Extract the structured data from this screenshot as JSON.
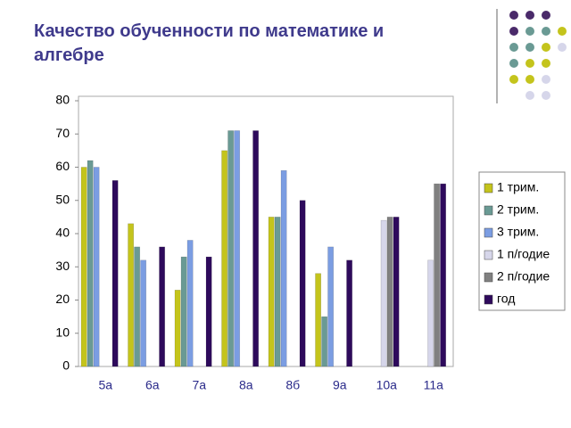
{
  "chart_data": {
    "type": "bar",
    "title": "Качество обученности по математике и алгебре",
    "categories": [
      "5а",
      "6а",
      "7а",
      "8а",
      "8б",
      "9а",
      "10а",
      "11а"
    ],
    "series": [
      {
        "name": "1 трим.",
        "color": "#c4c41c",
        "values": [
          60,
          43,
          23,
          65,
          45,
          28,
          0,
          0
        ]
      },
      {
        "name": "2 трим.",
        "color": "#6a9a94",
        "values": [
          62,
          36,
          33,
          71,
          45,
          15,
          0,
          0
        ]
      },
      {
        "name": "3 трим.",
        "color": "#7b9de2",
        "values": [
          60,
          32,
          38,
          71,
          59,
          36,
          0,
          0
        ]
      },
      {
        "name": "1 п/годие",
        "color": "#d6d6ea",
        "values": [
          0,
          0,
          0,
          0,
          0,
          0,
          44,
          32
        ]
      },
      {
        "name": "2 п/годие",
        "color": "#808080",
        "values": [
          0,
          0,
          0,
          0,
          0,
          0,
          45,
          55
        ]
      },
      {
        "name": "год",
        "color": "#2e0a5c",
        "values": [
          56,
          36,
          33,
          71,
          50,
          32,
          45,
          55
        ]
      }
    ],
    "ylim": [
      0,
      80
    ],
    "yticks": [
      0,
      10,
      20,
      30,
      40,
      50,
      60,
      70,
      80
    ],
    "grid": false,
    "legend": "right"
  }
}
